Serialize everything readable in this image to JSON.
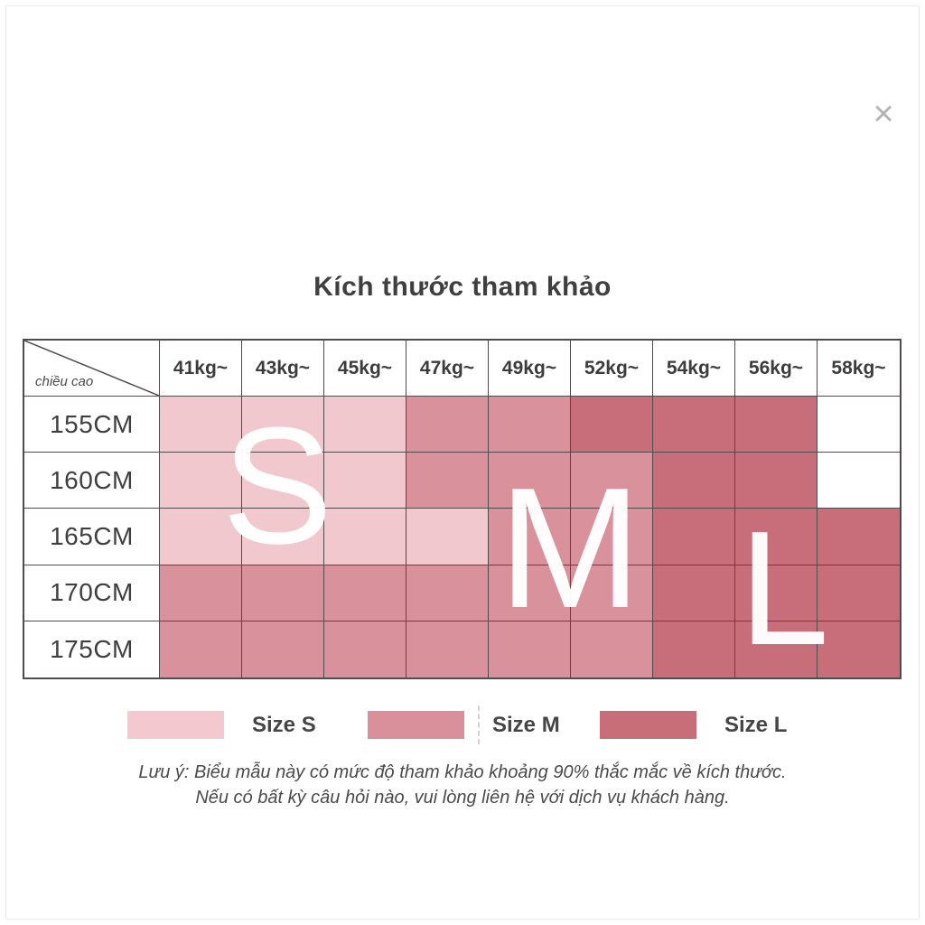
{
  "page": {
    "title": "Kích thước tham khảo",
    "close_glyph": "×"
  },
  "table": {
    "corner_label": "chiều cao",
    "weight_headers": [
      "41kg~",
      "43kg~",
      "45kg~",
      "47kg~",
      "49kg~",
      "52kg~",
      "54kg~",
      "56kg~",
      "58kg~"
    ],
    "height_rows": [
      "155CM",
      "160CM",
      "165CM",
      "170CM",
      "175CM"
    ],
    "cells": [
      [
        "S",
        "S",
        "S",
        "M",
        "M",
        "L",
        "L",
        "L",
        ""
      ],
      [
        "S",
        "S",
        "S",
        "M",
        "M",
        "M",
        "L",
        "L",
        ""
      ],
      [
        "S",
        "S",
        "S",
        "S",
        "M",
        "M",
        "L",
        "L",
        "L"
      ],
      [
        "M",
        "M",
        "M",
        "M",
        "M",
        "M",
        "L",
        "L",
        "L"
      ],
      [
        "M",
        "M",
        "M",
        "M",
        "M",
        "M",
        "L",
        "L",
        "L"
      ]
    ],
    "size_letters": [
      "S",
      "M",
      "L"
    ]
  },
  "colors": {
    "S": "#f2c8cf",
    "M": "#d9919b",
    "L": "#c76e7a",
    "empty": "#ffffff",
    "grid": "#524b4e"
  },
  "legend": [
    {
      "label": "Size S",
      "color": "#f3c8ce"
    },
    {
      "label": "Size M",
      "color": "#d9909a"
    },
    {
      "label": "Size L",
      "color": "#c76e79"
    }
  ],
  "note": {
    "line1": "Lưu ý: Biểu mẫu này có mức độ tham khảo khoảng 90% thắc mắc về kích thước.",
    "line2": "Nếu có bất kỳ câu hỏi nào, vui lòng liên hệ với dịch vụ khách hàng."
  },
  "chart_data": {
    "type": "table",
    "title": "Kích thước tham khảo",
    "row_header": "chiều cao",
    "columns": [
      "41kg~",
      "43kg~",
      "45kg~",
      "47kg~",
      "49kg~",
      "52kg~",
      "54kg~",
      "56kg~",
      "58kg~"
    ],
    "rows": [
      "155CM",
      "160CM",
      "165CM",
      "170CM",
      "175CM"
    ],
    "values": [
      [
        "S",
        "S",
        "S",
        "M",
        "M",
        "L",
        "L",
        "L",
        ""
      ],
      [
        "S",
        "S",
        "S",
        "M",
        "M",
        "M",
        "L",
        "L",
        ""
      ],
      [
        "S",
        "S",
        "S",
        "S",
        "M",
        "M",
        "L",
        "L",
        "L"
      ],
      [
        "M",
        "M",
        "M",
        "M",
        "M",
        "M",
        "L",
        "L",
        "L"
      ],
      [
        "M",
        "M",
        "M",
        "M",
        "M",
        "M",
        "L",
        "L",
        "L"
      ]
    ],
    "legend": [
      "Size S",
      "Size M",
      "Size L"
    ]
  }
}
